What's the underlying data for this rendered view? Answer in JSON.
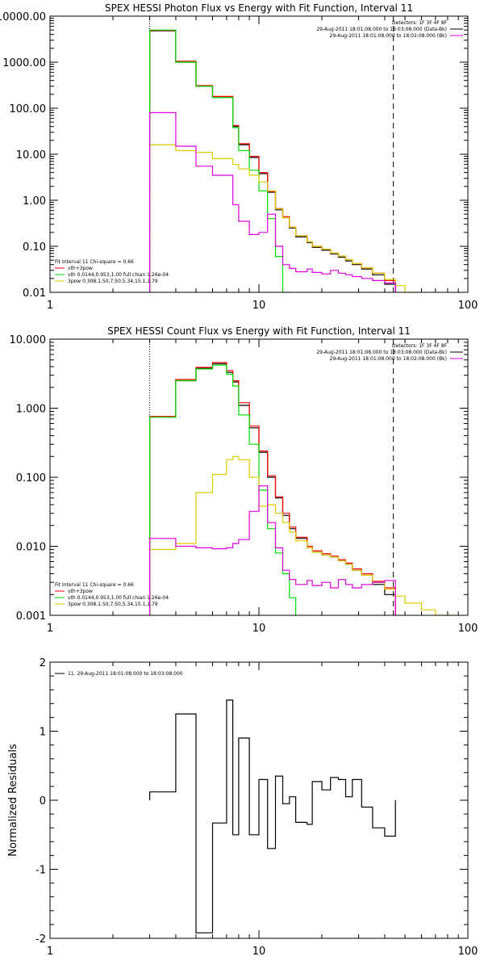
{
  "chart_data": [
    {
      "type": "line",
      "drawstyle": "steps",
      "title": "SPEX HESSI Photon Flux vs Energy with Fit Function, Interval 11",
      "xscale": "log",
      "yscale": "log",
      "xlim": [
        1,
        100
      ],
      "ylim": [
        0.01,
        10000
      ],
      "xticks": [
        {
          "value": 1,
          "label": "1"
        },
        {
          "value": 10,
          "label": "10"
        },
        {
          "value": 100,
          "label": "100"
        }
      ],
      "yticks": [
        {
          "value": 0.01,
          "label": "0.01"
        },
        {
          "value": 0.1,
          "label": "0.10"
        },
        {
          "value": 1,
          "label": "1.00"
        },
        {
          "value": 10,
          "label": "10.00"
        },
        {
          "value": 100,
          "label": "100.00"
        },
        {
          "value": 1000,
          "label": "1000.00"
        },
        {
          "value": 10000,
          "label": "10000.00"
        }
      ],
      "dotted_line_x": 3.0,
      "dashed_line_x": 44.0,
      "legend_right": [
        "Detectors: 1F 3F 4F 8F",
        "29-Aug-2011 18:01:08.000 to 18:03:08.000 (Data-Bk)",
        "29-Aug-2011 18:01:08.000 to 18:02:08.000 (Bk)"
      ],
      "legend_left": [
        "Fit Interval 11    Chi-square = 0.66",
        "vth+3pow",
        "vth 0.0144,0.953,1.00  full chian 1.26e-04",
        "3pow 0.308,1.50,7.50,5.34,15.1,1.79"
      ],
      "series": [
        {
          "name": "29-Aug-2011 18:01:08.000 to 18:03:08.000 (Data-Bk)",
          "color": "#000000",
          "edges": [
            3,
            4,
            5,
            6,
            7.5,
            8,
            9,
            10,
            11,
            12,
            13,
            14,
            15,
            17,
            18,
            20,
            22,
            24,
            26,
            28,
            31,
            35,
            40,
            45
          ],
          "values": [
            4800,
            1000,
            300,
            170,
            40,
            16,
            8.5,
            3.8,
            1.5,
            0.62,
            0.42,
            0.25,
            0.16,
            0.12,
            0.095,
            0.082,
            0.068,
            0.058,
            0.048,
            0.04,
            0.032,
            0.024,
            0.015
          ]
        },
        {
          "name": "vth+3pow",
          "color": "#ff0000",
          "edges": [
            3,
            4,
            5,
            6,
            7.5,
            8,
            9,
            10,
            11,
            12,
            13,
            14,
            15,
            17,
            18,
            20,
            22,
            24,
            26,
            28,
            31,
            35,
            40,
            45
          ],
          "values": [
            4900,
            1050,
            310,
            180,
            42,
            17,
            9,
            4,
            1.55,
            0.66,
            0.44,
            0.26,
            0.17,
            0.125,
            0.1,
            0.086,
            0.071,
            0.061,
            0.051,
            0.042,
            0.034,
            0.026,
            0.018
          ]
        },
        {
          "name": "vth 0.0144,0.953,1.00  full chian 1.26e-04",
          "color": "#00dd00",
          "edges": [
            3,
            4,
            5,
            6,
            7.5,
            8,
            9,
            10,
            11,
            12,
            13,
            14
          ],
          "values": [
            5000,
            1000,
            300,
            170,
            38,
            12,
            4.5,
            1.6,
            0.4,
            0.06,
            0.01
          ]
        },
        {
          "name": "3pow 0.308,1.50,7.50,5.34,15.1,1.79",
          "color": "#ddcc00",
          "edges": [
            3,
            4,
            5,
            6,
            7.5,
            8,
            9,
            10,
            11,
            12,
            13,
            14,
            15,
            17,
            18,
            20,
            22,
            24,
            26,
            28,
            31,
            35,
            40,
            45,
            50,
            60
          ],
          "values": [
            16,
            12,
            11,
            8,
            6,
            4.8,
            3.5,
            2.5,
            1.6,
            0.65,
            0.42,
            0.26,
            0.17,
            0.125,
            0.1,
            0.086,
            0.071,
            0.061,
            0.051,
            0.042,
            0.034,
            0.026,
            0.019,
            0.014,
            0.01
          ]
        },
        {
          "name": "29-Aug-2011 18:01:08.000 to 18:02:08.000 (Bk)",
          "color": "#dd00dd",
          "edges": [
            3,
            4,
            5,
            6,
            7.5,
            8,
            9,
            10,
            11,
            12,
            13,
            14,
            15,
            17,
            18,
            20,
            22,
            24,
            26,
            28,
            31,
            35,
            40,
            45
          ],
          "values": [
            80,
            15,
            5.5,
            3.5,
            0.8,
            0.35,
            0.18,
            0.2,
            0.5,
            0.1,
            0.04,
            0.033,
            0.028,
            0.032,
            0.027,
            0.025,
            0.03,
            0.026,
            0.024,
            0.022,
            0.02,
            0.018,
            0.016
          ]
        }
      ]
    },
    {
      "type": "line",
      "drawstyle": "steps",
      "title": "SPEX HESSI Count Flux vs Energy with Fit Function, Interval 11",
      "xscale": "log",
      "yscale": "log",
      "xlim": [
        1,
        100
      ],
      "ylim": [
        0.001,
        10
      ],
      "xticks": [
        {
          "value": 1,
          "label": "1"
        },
        {
          "value": 10,
          "label": "10"
        },
        {
          "value": 100,
          "label": "100"
        }
      ],
      "yticks": [
        {
          "value": 0.001,
          "label": "0.001"
        },
        {
          "value": 0.01,
          "label": "0.010"
        },
        {
          "value": 0.1,
          "label": "0.100"
        },
        {
          "value": 1,
          "label": "1.000"
        },
        {
          "value": 10,
          "label": "10.000"
        }
      ],
      "dotted_line_x": 3.0,
      "dashed_line_x": 44.0,
      "legend_right": [
        "Detectors: 1F 3F 4F 8F",
        "29-Aug-2011 18:01:08.000 to 18:03:08.000 (Data-Bk)",
        "29-Aug-2011 18:01:08.000 to 18:02:08.000 (Bk)"
      ],
      "legend_left": [
        "Fit Interval 11    Chi-square = 0.66",
        "vth+3pow",
        "vth 0.0144,0.953,1.00  full chian 1.26e-04",
        "3pow 0.308,1.50,7.50,5.34,15.1,1.79"
      ],
      "series": [
        {
          "name": "29-Aug-2011 18:01:08.000 to 18:03:08.000 (Data-Bk)",
          "color": "#000000",
          "edges": [
            3,
            4,
            5,
            6,
            7,
            7.5,
            8,
            9,
            10,
            11,
            12,
            13,
            14,
            15,
            17,
            18,
            20,
            22,
            24,
            26,
            28,
            31,
            35,
            40,
            45
          ],
          "values": [
            0.75,
            2.5,
            3.8,
            4.4,
            3.3,
            2.4,
            1.1,
            0.52,
            0.23,
            0.1,
            0.05,
            0.028,
            0.018,
            0.013,
            0.0095,
            0.0082,
            0.0075,
            0.007,
            0.0062,
            0.0055,
            0.0045,
            0.0038,
            0.0028,
            0.002
          ]
        },
        {
          "name": "vth+3pow",
          "color": "#ff0000",
          "edges": [
            3,
            4,
            5,
            6,
            7,
            7.5,
            8,
            9,
            10,
            11,
            12,
            13,
            14,
            15,
            17,
            18,
            20,
            22,
            24,
            26,
            28,
            31,
            35,
            40,
            45
          ],
          "values": [
            0.76,
            2.6,
            3.9,
            4.6,
            3.5,
            2.5,
            1.2,
            0.55,
            0.24,
            0.105,
            0.052,
            0.03,
            0.019,
            0.0135,
            0.01,
            0.0086,
            0.0078,
            0.0072,
            0.0064,
            0.0057,
            0.0047,
            0.004,
            0.0031,
            0.0025
          ]
        },
        {
          "name": "vth 0.0144,0.953,1.00  full chian 1.26e-04",
          "color": "#00dd00",
          "edges": [
            3,
            4,
            5,
            6,
            7,
            7.5,
            8,
            9,
            10,
            11,
            12,
            13,
            14,
            15
          ],
          "values": [
            0.74,
            2.5,
            3.7,
            4.2,
            3.1,
            2.1,
            0.8,
            0.3,
            0.065,
            0.018,
            0.008,
            0.004,
            0.0018
          ]
        },
        {
          "name": "3pow 0.308,1.50,7.50,5.34,15.1,1.79",
          "color": "#ddcc00",
          "edges": [
            3,
            4,
            5,
            6,
            7,
            7.5,
            8,
            9,
            10,
            11,
            12,
            13,
            14,
            15,
            17,
            18,
            20,
            22,
            24,
            26,
            28,
            31,
            35,
            40,
            45,
            50,
            60,
            70,
            80,
            90
          ],
          "values": [
            0.009,
            0.011,
            0.06,
            0.11,
            0.18,
            0.2,
            0.18,
            0.1,
            0.038,
            0.04,
            0.03,
            0.022,
            0.016,
            0.012,
            0.0095,
            0.0082,
            0.0075,
            0.007,
            0.0062,
            0.0055,
            0.0045,
            0.0038,
            0.003,
            0.0024,
            0.0019,
            0.0015,
            0.0012,
            0.001,
            0.001
          ]
        },
        {
          "name": "29-Aug-2011 18:01:08.000 to 18:02:08.000 (Bk)",
          "color": "#dd00dd",
          "edges": [
            3,
            4,
            5,
            6,
            7,
            7.5,
            8,
            9,
            10,
            11,
            12,
            13,
            14,
            15,
            17,
            18,
            20,
            22,
            24,
            26,
            28,
            31,
            35,
            40,
            45
          ],
          "values": [
            0.013,
            0.01,
            0.0095,
            0.0092,
            0.0095,
            0.011,
            0.0125,
            0.032,
            0.075,
            0.022,
            0.0095,
            0.0045,
            0.0033,
            0.0028,
            0.0032,
            0.0027,
            0.003,
            0.0025,
            0.0033,
            0.0028,
            0.0025,
            0.0028,
            0.003,
            0.0032
          ]
        }
      ]
    },
    {
      "type": "line",
      "drawstyle": "steps",
      "title": "",
      "ylabel": "Normalized Residuals",
      "xscale": "log",
      "yscale": "linear",
      "xlim": [
        1,
        100
      ],
      "ylim": [
        -2,
        2
      ],
      "xticks": [
        {
          "value": 1,
          "label": "1"
        },
        {
          "value": 10,
          "label": "10"
        },
        {
          "value": 100,
          "label": "100"
        }
      ],
      "yticks": [
        {
          "value": -2,
          "label": "-2"
        },
        {
          "value": -1,
          "label": "-1"
        },
        {
          "value": 0,
          "label": "0"
        },
        {
          "value": 1,
          "label": "1"
        },
        {
          "value": 2,
          "label": "2"
        }
      ],
      "legend_left": [
        "11. 29-Aug-2011 18:01:08.000 to 18:03:08.000"
      ],
      "series": [
        {
          "name": "11. 29-Aug-2011 18:01:08.000 to 18:03:08.000",
          "color": "#000000",
          "edges": [
            3,
            4,
            5,
            6,
            7,
            7.5,
            8,
            9,
            10,
            11,
            12,
            13,
            14,
            15,
            17,
            18,
            20,
            22,
            24,
            26,
            28,
            31,
            35,
            40,
            45
          ],
          "values": [
            0.12,
            1.25,
            -1.92,
            -0.33,
            1.45,
            -0.5,
            0.9,
            -0.5,
            0.3,
            -0.7,
            0.35,
            -0.05,
            0.05,
            -0.32,
            -0.35,
            0.27,
            0.15,
            0.33,
            0.3,
            0.05,
            0.3,
            -0.1,
            -0.4,
            -0.52
          ]
        }
      ]
    }
  ]
}
